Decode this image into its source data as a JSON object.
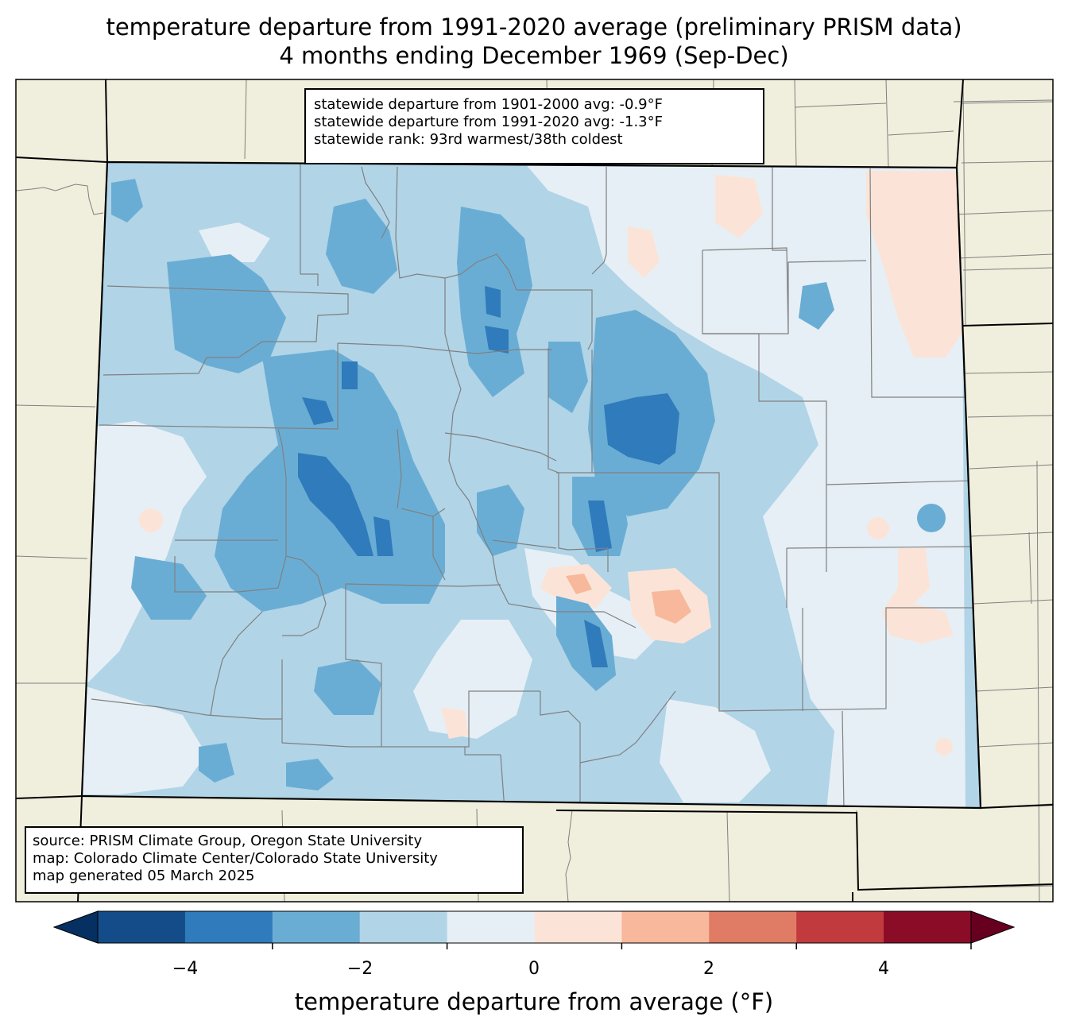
{
  "title": {
    "line1": "temperature departure from 1991-2020 average (preliminary PRISM data)",
    "line2": "4 months ending December 1969 (Sep-Dec)"
  },
  "stats": {
    "line1": "statewide departure from 1901-2000 avg: -0.9°F",
    "line2": "statewide departure from 1991-2020 avg: -1.3°F",
    "line3": "statewide rank: 93rd warmest/38th coldest"
  },
  "source": {
    "line1": "source: PRISM Climate Group, Oregon State University",
    "line2": "map: Colorado Climate Center/Colorado State University",
    "line3": "map generated 05 March 2025"
  },
  "colorbar": {
    "label": "temperature departure from average (°F)",
    "ticks": [
      "−4",
      "−2",
      "0",
      "2",
      "4"
    ],
    "colors": [
      "#053061",
      "#134c89",
      "#2f7bbb",
      "#6aadd4",
      "#b1d4e7",
      "#e6eff5",
      "#fbe4d7",
      "#f7b89b",
      "#e07b65",
      "#c13a3d",
      "#8a0c27",
      "#67001f"
    ]
  },
  "colors": {
    "land_outside": "#f0eedc",
    "border": "#000000",
    "county_line": "#808080"
  }
}
